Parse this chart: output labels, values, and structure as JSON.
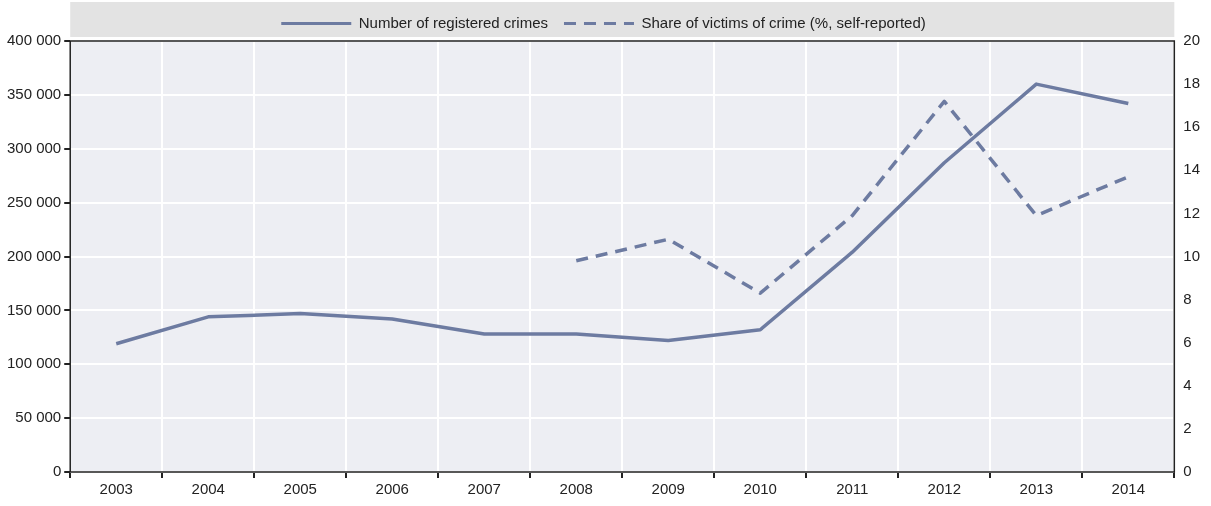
{
  "chart_data": {
    "type": "line",
    "categories": [
      "2003",
      "2004",
      "2005",
      "2006",
      "2007",
      "2008",
      "2009",
      "2010",
      "2011",
      "2012",
      "2013",
      "2014"
    ],
    "series": [
      {
        "name": "Number of registered crimes",
        "color": "#6d7ba1",
        "line_style": "solid",
        "values": [
          119000,
          144000,
          147000,
          142000,
          128000,
          128000,
          122000,
          132000,
          204000,
          287000,
          360000,
          342000
        ]
      },
      {
        "name": "Share of victims of crime (%, self-reported)",
        "color": "#6d7ba1",
        "line_style": "dashed",
        "axis": "y2",
        "values": [
          null,
          null,
          null,
          null,
          null,
          9.8,
          10.8,
          8.3,
          11.9,
          17.2,
          11.9,
          13.7
        ]
      }
    ],
    "ylim": [
      0,
      400000
    ],
    "yticks": [
      {
        "value": 0,
        "label": "0"
      },
      {
        "value": 50000,
        "label": "50 000"
      },
      {
        "value": 100000,
        "label": "100 000"
      },
      {
        "value": 150000,
        "label": "150 000"
      },
      {
        "value": 200000,
        "label": "200 000"
      },
      {
        "value": 250000,
        "label": "250 000"
      },
      {
        "value": 300000,
        "label": "300 000"
      },
      {
        "value": 350000,
        "label": "350 000"
      },
      {
        "value": 400000,
        "label": "400 000"
      }
    ],
    "y2lim": [
      0,
      20
    ],
    "y2ticks": [
      0,
      2,
      4,
      6,
      8,
      10,
      12,
      14,
      16,
      18,
      20
    ],
    "grid": true,
    "legend": "top",
    "marker": "none"
  }
}
